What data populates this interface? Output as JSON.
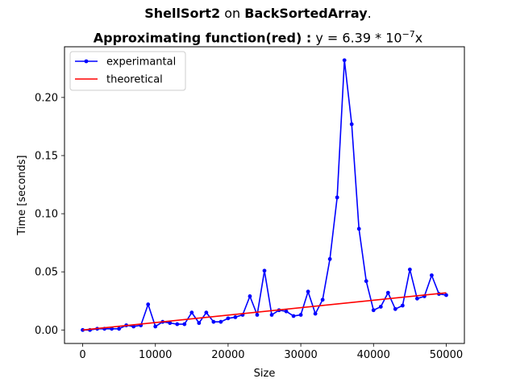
{
  "title": {
    "line1_bold_a": "ShellSort2",
    "line1_plain": " on ",
    "line1_bold_b": "BackSortedArray",
    "line1_end": ".",
    "line2_bold": "Approximating function(red) :",
    "line2_formula_pre": " y = 6.39 * 10",
    "line2_formula_exp": "−7",
    "line2_formula_post": "x"
  },
  "chart_data": {
    "type": "line",
    "xlabel": "Size",
    "ylabel": "Time [seconds]",
    "xlim": [
      -2500,
      52500
    ],
    "ylim": [
      -0.0116,
      0.2436
    ],
    "xticks": [
      0,
      10000,
      20000,
      30000,
      40000,
      50000
    ],
    "xtick_labels": [
      "0",
      "10000",
      "20000",
      "30000",
      "40000",
      "50000"
    ],
    "yticks": [
      0.0,
      0.05,
      0.1,
      0.15,
      0.2
    ],
    "ytick_labels": [
      "0.00",
      "0.05",
      "0.10",
      "0.15",
      "0.20"
    ],
    "grid": false,
    "legend_position": "top-left",
    "series": [
      {
        "name": "experimantal",
        "color": "#0000ff",
        "marker": "circle",
        "x": [
          0,
          1000,
          2000,
          3000,
          4000,
          5000,
          6000,
          7000,
          8000,
          9000,
          10000,
          11000,
          12000,
          13000,
          14000,
          15000,
          16000,
          17000,
          18000,
          19000,
          20000,
          21000,
          22000,
          23000,
          24000,
          25000,
          26000,
          27000,
          28000,
          29000,
          30000,
          31000,
          32000,
          33000,
          34000,
          35000,
          36000,
          37000,
          38000,
          39000,
          40000,
          41000,
          42000,
          43000,
          44000,
          45000,
          46000,
          47000,
          48000,
          49000,
          50000
        ],
        "y": [
          0.0,
          0.0,
          0.001,
          0.001,
          0.001,
          0.001,
          0.004,
          0.003,
          0.004,
          0.022,
          0.003,
          0.007,
          0.006,
          0.005,
          0.005,
          0.015,
          0.006,
          0.015,
          0.007,
          0.007,
          0.01,
          0.011,
          0.013,
          0.029,
          0.013,
          0.051,
          0.013,
          0.017,
          0.016,
          0.012,
          0.013,
          0.033,
          0.014,
          0.026,
          0.061,
          0.114,
          0.232,
          0.177,
          0.087,
          0.042,
          0.017,
          0.02,
          0.032,
          0.018,
          0.021,
          0.052,
          0.027,
          0.029,
          0.047,
          0.031,
          0.03
        ]
      },
      {
        "name": "theoretical",
        "color": "#ff0000",
        "marker": "none",
        "x": [
          0,
          50000
        ],
        "y": [
          0.0,
          0.03195
        ]
      }
    ]
  }
}
